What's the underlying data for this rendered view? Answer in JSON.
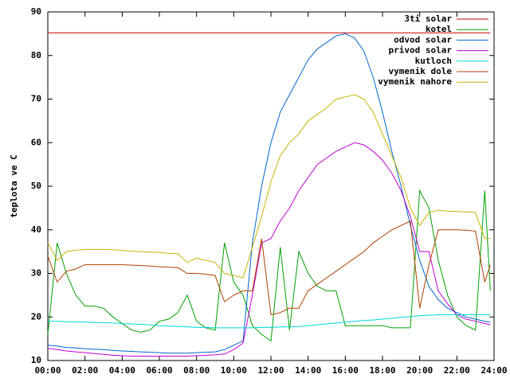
{
  "chart_data": {
    "type": "line",
    "y_label": "teplota ve C",
    "x": [
      0,
      0.5,
      1,
      1.5,
      2,
      2.5,
      3,
      3.5,
      4,
      4.5,
      5,
      5.5,
      6,
      6.5,
      7,
      7.5,
      8,
      8.5,
      9,
      9.5,
      10,
      10.5,
      11,
      11.5,
      12,
      12.5,
      13,
      13.5,
      14,
      14.5,
      15,
      15.5,
      16,
      16.5,
      17,
      17.5,
      18,
      18.5,
      19,
      19.5,
      20,
      20.5,
      21,
      21.5,
      22,
      22.5,
      23,
      23.5,
      23.8
    ],
    "xlim": [
      0,
      24
    ],
    "xticks": [
      {
        "value": 0,
        "label": "00:00"
      },
      {
        "value": 2,
        "label": "02:00"
      },
      {
        "value": 4,
        "label": "04:00"
      },
      {
        "value": 6,
        "label": "06:00"
      },
      {
        "value": 8,
        "label": "08:00"
      },
      {
        "value": 10,
        "label": "10:00"
      },
      {
        "value": 12,
        "label": "12:00"
      },
      {
        "value": 14,
        "label": "14:00"
      },
      {
        "value": 16,
        "label": "16:00"
      },
      {
        "value": 18,
        "label": "18:00"
      },
      {
        "value": 20,
        "label": "20:00"
      },
      {
        "value": 22,
        "label": "22:00"
      },
      {
        "value": 24,
        "label": "24:00"
      }
    ],
    "ylim": [
      10,
      90
    ],
    "yticks": [
      10,
      20,
      30,
      40,
      50,
      60,
      70,
      80,
      90
    ],
    "legend": "top-right",
    "series": [
      {
        "name": "3ti solar",
        "color": "#c00000",
        "values": [
          85.2,
          85.2,
          85.2,
          85.2,
          85.2,
          85.2,
          85.2,
          85.2,
          85.2,
          85.2,
          85.2,
          85.2,
          85.2,
          85.2,
          85.2,
          85.2,
          85.2,
          85.2,
          85.2,
          85.2,
          85.2,
          85.2,
          85.2,
          85.2,
          85.2,
          85.2,
          85.2,
          85.2,
          85.2,
          85.2,
          85.2,
          85.2,
          85.2,
          85.2,
          85.2,
          85.2,
          85.2,
          85.2,
          85.2,
          85.2,
          85.2,
          85.2,
          85.2,
          85.2,
          85.2,
          85.2,
          85.2,
          85.2,
          85.2
        ]
      },
      {
        "name": "kotel",
        "color": "#00a000",
        "values": [
          16,
          37,
          30,
          25,
          22.5,
          22.5,
          22,
          20,
          18.5,
          17,
          16.5,
          17,
          19,
          19.5,
          21,
          25,
          19,
          17.5,
          17,
          37,
          28,
          25,
          18,
          16,
          14.5,
          36,
          17,
          35,
          30,
          27,
          26,
          26,
          18,
          18,
          18,
          18,
          18,
          17.5,
          17.5,
          17.5,
          49,
          45,
          33,
          25,
          20,
          18,
          17,
          49,
          26
        ]
      },
      {
        "name": "odvod solar",
        "color": "#0066cc",
        "values": [
          13.5,
          13.3,
          13,
          12.9,
          12.7,
          12.6,
          12.5,
          12.3,
          12.2,
          12.1,
          12,
          11.9,
          11.8,
          11.7,
          11.7,
          11.7,
          11.8,
          11.9,
          12,
          12.5,
          13.5,
          14.5,
          37,
          50,
          60,
          67,
          71,
          75,
          79,
          81.5,
          83,
          84.5,
          85,
          84,
          81,
          75,
          67,
          58,
          50,
          41,
          33,
          27,
          24,
          22,
          21,
          20,
          19.5,
          19,
          18.8
        ]
      },
      {
        "name": "privod solar",
        "color": "#c000d0",
        "values": [
          12.8,
          12.5,
          12.2,
          12,
          11.8,
          11.6,
          11.4,
          11.2,
          11.1,
          11,
          11,
          11,
          11,
          11,
          11,
          11,
          11.1,
          11.2,
          11.3,
          11.5,
          12.5,
          14,
          25,
          37,
          38,
          42,
          45,
          49,
          52,
          55,
          56.5,
          58,
          59,
          60,
          59.5,
          58,
          56,
          53,
          49,
          43,
          35,
          35,
          26,
          23,
          20.5,
          19.5,
          19,
          18.5,
          18.2
        ]
      },
      {
        "name": "kutloch",
        "color": "#00d8d8",
        "values": [
          19,
          19,
          18.9,
          18.9,
          18.8,
          18.7,
          18.7,
          18.6,
          18.5,
          18.4,
          18.3,
          18.2,
          18,
          17.9,
          17.8,
          17.7,
          17.6,
          17.6,
          17.5,
          17.5,
          17.5,
          17.5,
          17.5,
          17.6,
          17.6,
          17.7,
          17.7,
          17.8,
          18,
          18.2,
          18.4,
          18.6,
          18.8,
          19,
          19.2,
          19.3,
          19.5,
          19.7,
          19.9,
          20.1,
          20.3,
          20.4,
          20.5,
          20.5,
          20.5,
          20.5,
          20.5,
          20.5,
          20.5
        ]
      },
      {
        "name": "vymenik dole",
        "color": "#b04000",
        "values": [
          34,
          28,
          30.5,
          31,
          32,
          32,
          32,
          32,
          32,
          31.9,
          31.8,
          31.7,
          31.5,
          31.4,
          31.3,
          30,
          30,
          29.8,
          29.5,
          23.5,
          25,
          26,
          26,
          38,
          20.5,
          21,
          22,
          22,
          26,
          27.5,
          29,
          30.5,
          32,
          33.5,
          35,
          37,
          38.5,
          40,
          41,
          42,
          22,
          32,
          40,
          40,
          40,
          39.9,
          39.7,
          28,
          32
        ]
      },
      {
        "name": "vymenik nahore",
        "color": "#c8b400",
        "values": [
          37,
          33,
          35,
          35.3,
          35.5,
          35.5,
          35.5,
          35.4,
          35.3,
          35.1,
          35,
          34.9,
          34.8,
          34.6,
          34.5,
          32.5,
          33.5,
          33,
          32.5,
          30,
          29.5,
          29,
          36,
          43,
          51,
          57,
          60,
          62,
          65,
          66.5,
          68,
          70,
          70.5,
          71,
          70,
          67,
          62,
          57,
          52,
          45,
          41,
          44,
          44.5,
          44.3,
          44.2,
          44.1,
          44,
          38,
          38
        ]
      }
    ]
  }
}
